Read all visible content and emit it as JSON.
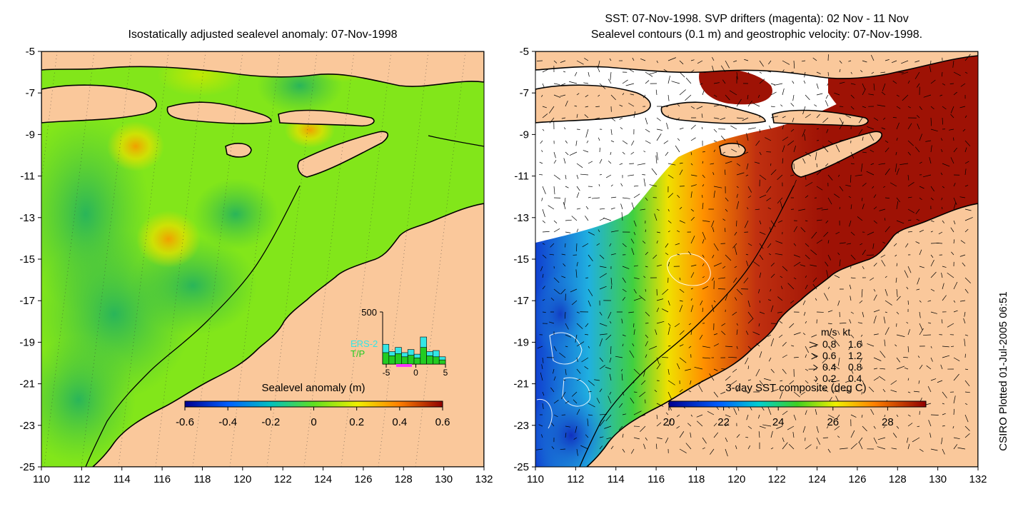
{
  "left_panel": {
    "title": "Isostatically adjusted sealevel anomaly: 07-Nov-1998",
    "colorbar": {
      "label": "Sealevel anomaly (m)",
      "ticks": [
        "-0.6",
        "-0.4",
        "-0.2",
        "0",
        "0.2",
        "0.4",
        "0.6"
      ],
      "range": [
        -0.6,
        0.6
      ]
    },
    "inset": {
      "y_tick": "500",
      "x_ticks": [
        "-5",
        "0",
        "5"
      ],
      "legend": [
        "ERS-2",
        "T/P"
      ],
      "colors": {
        "ers2": "#33e6e6",
        "tp": "#22cc22",
        "marker": "#ff33ff"
      },
      "ers2_counts": [
        190,
        120,
        160,
        110,
        140,
        95,
        260,
        120,
        130,
        70
      ],
      "tp_counts": [
        110,
        80,
        100,
        70,
        85,
        60,
        160,
        80,
        70,
        40
      ]
    }
  },
  "right_panel": {
    "title_line1": "SST: 07-Nov-1998. SVP drifters (magenta): 02 Nov - 11 Nov",
    "title_line2": "Sealevel contours (0.1 m) and geostrophic velocity: 07-Nov-1998.",
    "colorbar": {
      "label": "3-day SST composite (deg C)",
      "ticks": [
        "20",
        "22",
        "24",
        "26",
        "28"
      ],
      "range": [
        20,
        29.4
      ]
    },
    "velocity_legend": {
      "header": "m/s  kt",
      "rows": [
        {
          "ms": "0.8",
          "kt": "1.6"
        },
        {
          "ms": "0.6",
          "kt": "1.2"
        },
        {
          "ms": "0.4",
          "kt": "0.8"
        },
        {
          "ms": "0.2",
          "kt": "0.4"
        }
      ]
    }
  },
  "axes": {
    "lon_ticks": [
      "110",
      "112",
      "114",
      "116",
      "118",
      "120",
      "122",
      "124",
      "126",
      "128",
      "130",
      "132"
    ],
    "lat_ticks": [
      "-5",
      "-7",
      "-9",
      "-11",
      "-13",
      "-15",
      "-17",
      "-19",
      "-21",
      "-23",
      "-25"
    ],
    "lon_range": [
      110,
      132
    ],
    "lat_range": [
      -25,
      -5
    ]
  },
  "credit": "CSIRO Plotted 01-Jul-2005 06:51",
  "colors": {
    "land": "#fac89b",
    "sla_background": "#82e61a",
    "sst_warm": "#9e1205",
    "coast": "#000000"
  }
}
